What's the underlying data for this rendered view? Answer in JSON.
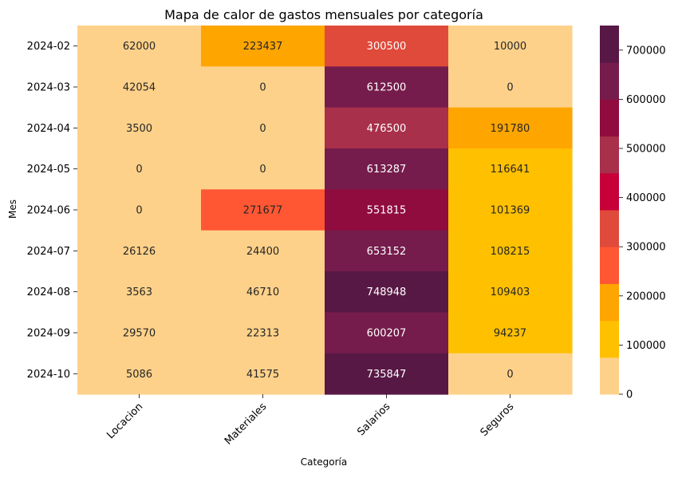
{
  "chart_data": {
    "type": "heatmap",
    "title": "Mapa de calor de gastos mensuales por categoría",
    "xlabel": "Categoría",
    "ylabel": "Mes",
    "columns": [
      "Locacion",
      "Materiales",
      "Salarios",
      "Seguros"
    ],
    "rows": [
      "2024-02",
      "2024-03",
      "2024-04",
      "2024-05",
      "2024-06",
      "2024-07",
      "2024-08",
      "2024-09",
      "2024-10"
    ],
    "values": [
      [
        62000,
        223437,
        300500,
        10000
      ],
      [
        42054,
        0,
        612500,
        0
      ],
      [
        3500,
        0,
        476500,
        191780
      ],
      [
        0,
        0,
        613287,
        116641
      ],
      [
        0,
        271677,
        551815,
        101369
      ],
      [
        26126,
        24400,
        653152,
        108215
      ],
      [
        3563,
        46710,
        748948,
        109403
      ],
      [
        29570,
        22313,
        600207,
        94237
      ],
      [
        5086,
        41575,
        735847,
        0
      ]
    ],
    "colorbar": {
      "min": 0,
      "max": 750000,
      "ticks": [
        0,
        100000,
        200000,
        300000,
        400000,
        500000,
        600000,
        700000
      ],
      "colors": [
        "#FED18A",
        "#FFC000",
        "#FFA500",
        "#FF5733",
        "#E04A3B",
        "#C70039",
        "#A8304A",
        "#900C3F",
        "#751C4C",
        "#581845"
      ]
    }
  }
}
